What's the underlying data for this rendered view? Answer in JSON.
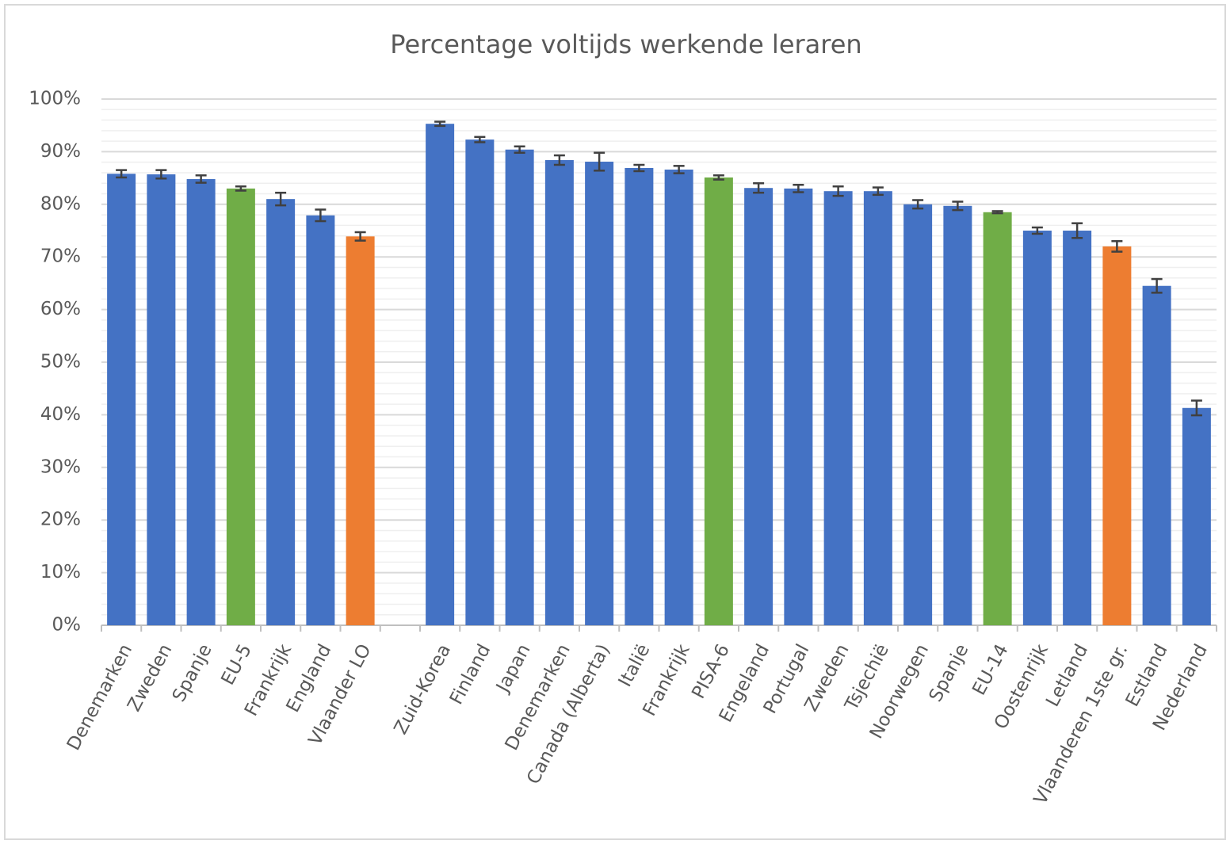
{
  "chart_data": {
    "type": "bar",
    "title": "Percentage voltijds werkende leraren",
    "categories": [
      "Denemarken",
      "Zweden",
      "Spanje",
      "EU-5",
      "Frankrijk",
      "England",
      "Vlaander LO",
      null,
      "Zuid-Korea",
      "Finland",
      "Japan",
      "Denemarken",
      "Canada (Alberta)",
      "Italië",
      "Frankrijk",
      "PISA-6",
      "Engeland",
      "Portugal",
      "Zweden",
      "Tsjechië",
      "Noorwegen",
      "Spanje",
      "EU-14",
      "Oostenrijk",
      "Letland",
      "Vlaanderen 1ste gr.",
      "Estland",
      "Nederland"
    ],
    "values": [
      85.8,
      85.7,
      84.8,
      83.0,
      81.0,
      77.9,
      73.9,
      null,
      95.3,
      92.3,
      90.4,
      88.4,
      88.1,
      86.9,
      86.6,
      85.1,
      83.1,
      83.0,
      82.5,
      82.5,
      80.0,
      79.7,
      78.5,
      75.0,
      75.0,
      72.0,
      64.5,
      41.3
    ],
    "errors": [
      0.7,
      0.8,
      0.7,
      0.4,
      1.2,
      1.1,
      0.8,
      null,
      0.4,
      0.5,
      0.6,
      0.9,
      1.7,
      0.6,
      0.7,
      0.4,
      0.9,
      0.7,
      0.9,
      0.7,
      0.8,
      0.8,
      0.2,
      0.6,
      1.4,
      1.0,
      1.3,
      1.4
    ],
    "colors": [
      "#4472c4",
      "#4472c4",
      "#4472c4",
      "#70ad47",
      "#4472c4",
      "#4472c4",
      "#ed7d31",
      null,
      "#4472c4",
      "#4472c4",
      "#4472c4",
      "#4472c4",
      "#4472c4",
      "#4472c4",
      "#4472c4",
      "#70ad47",
      "#4472c4",
      "#4472c4",
      "#4472c4",
      "#4472c4",
      "#4472c4",
      "#4472c4",
      "#70ad47",
      "#4472c4",
      "#4472c4",
      "#ed7d31",
      "#4472c4",
      "#4472c4"
    ],
    "ylim": [
      0,
      100
    ],
    "yticks": [
      {
        "value": 0,
        "label": "0%"
      },
      {
        "value": 10,
        "label": "10%"
      },
      {
        "value": 20,
        "label": "20%"
      },
      {
        "value": 30,
        "label": "30%"
      },
      {
        "value": 40,
        "label": "40%"
      },
      {
        "value": 50,
        "label": "50%"
      },
      {
        "value": 60,
        "label": "60%"
      },
      {
        "value": 70,
        "label": "70%"
      },
      {
        "value": 80,
        "label": "80%"
      },
      {
        "value": 90,
        "label": "90%"
      },
      {
        "value": 100,
        "label": "100%"
      }
    ],
    "grid": true,
    "minor_grid": true
  }
}
